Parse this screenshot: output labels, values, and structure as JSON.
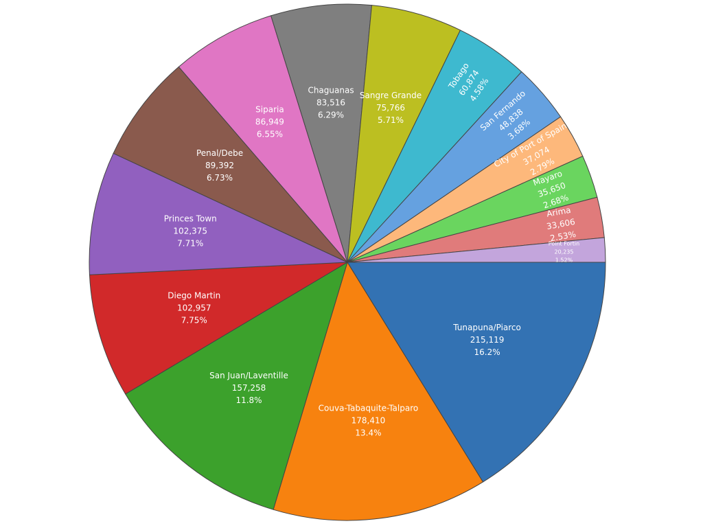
{
  "chart_data": {
    "type": "pie",
    "categories": [
      "Tunapuna/Piarco",
      "Couva-Tabaquite-Talparo",
      "San Juan/Laventille",
      "Diego Martin",
      "Princes Town",
      "Penal/Debe",
      "Siparia",
      "Chaguanas",
      "Sangre Grande",
      "Tobago",
      "San Fernando",
      "City of Port of Spain",
      "Mayaro",
      "Arima",
      "Point Fortin"
    ],
    "values": [
      215119,
      178410,
      157258,
      102957,
      102375,
      89392,
      86949,
      83516,
      75766,
      60874,
      48838,
      37074,
      35650,
      33606,
      20235
    ],
    "value_labels": [
      "215,119",
      "178,410",
      "157,258",
      "102,957",
      "102,375",
      "89,392",
      "86,949",
      "83,516",
      "75,766",
      "60,874",
      "48,838",
      "37,074",
      "35,650",
      "33,606",
      "20,235"
    ],
    "percent_labels": [
      "16.2%",
      "13.4%",
      "11.8%",
      "7.75%",
      "7.71%",
      "6.73%",
      "6.55%",
      "6.29%",
      "5.71%",
      "4.58%",
      "3.68%",
      "2.79%",
      "2.68%",
      "2.53%",
      "1.52%"
    ],
    "colors": [
      "#3372b3",
      "#f7820f",
      "#3ca12c",
      "#d1292a",
      "#9160bf",
      "#8a5a4d",
      "#e076c4",
      "#7f7f7f",
      "#bcbf21",
      "#3eb9cf",
      "#65a1e0",
      "#fdb87b",
      "#6ad55f",
      "#e07b7b",
      "#c3a5dc"
    ]
  }
}
